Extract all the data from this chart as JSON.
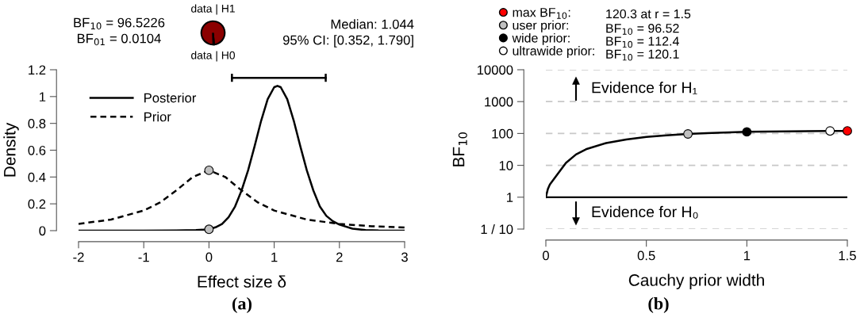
{
  "chart_data": [
    {
      "type": "line",
      "xlabel": "Effect size δ",
      "ylabel": "Density",
      "xlim": [
        -2,
        3
      ],
      "xticks": [
        -2,
        -1,
        0,
        1,
        2,
        3
      ],
      "ylim": [
        0,
        1.2
      ],
      "yticks": [
        0,
        0.2,
        0.4,
        0.6,
        0.8,
        1,
        1.2
      ],
      "grid": false,
      "legend": "top left",
      "annotations": [
        "BF$_{10}$ = 96.5226",
        "BF$_{01}$ = 0.0104",
        "Median: 1.044",
        "95% CI: [0.352, 1.790]",
        "(a)"
      ],
      "series": [
        {
          "type": "line",
          "name": "Posterior",
          "color": "#000000",
          "line_style": "solid",
          "x": [
            -2,
            -1,
            -0.5,
            -0.2,
            0,
            0.1,
            0.2,
            0.3,
            0.4,
            0.5,
            0.6,
            0.7,
            0.8,
            0.9,
            1.0,
            1.05,
            1.1,
            1.2,
            1.3,
            1.4,
            1.5,
            1.6,
            1.7,
            1.8,
            1.9,
            2.0,
            2.2,
            2.4,
            2.6,
            3
          ],
          "values": [
            0,
            0,
            0.001,
            0.004,
            0.01,
            0.025,
            0.05,
            0.1,
            0.18,
            0.3,
            0.45,
            0.63,
            0.82,
            0.98,
            1.07,
            1.08,
            1.07,
            0.98,
            0.82,
            0.63,
            0.45,
            0.3,
            0.18,
            0.11,
            0.07,
            0.045,
            0.015,
            0.004,
            0.001,
            0
          ]
        },
        {
          "type": "line",
          "name": "Prior",
          "color": "#000000",
          "line_style": "dashed",
          "x": [
            -2,
            -1.5,
            -1,
            -0.75,
            -0.5,
            -0.25,
            0,
            0.25,
            0.5,
            0.75,
            1,
            1.5,
            2,
            2.5,
            3
          ],
          "values": [
            0.05,
            0.083,
            0.15,
            0.21,
            0.3,
            0.4,
            0.45,
            0.4,
            0.3,
            0.21,
            0.15,
            0.083,
            0.05,
            0.033,
            0.024
          ]
        },
        {
          "type": "scatter",
          "color": "#c0c0c0",
          "marker": "circle",
          "x": [
            0,
            0
          ],
          "values": [
            0.45,
            0.01
          ]
        },
        {
          "type": "line",
          "color": "#000000",
          "line_style": "solid",
          "x": [
            0.352,
            1.79
          ],
          "values": [
            1.14,
            1.14
          ]
        }
      ]
    },
    {
      "type": "pie",
      "categories": [
        "data | H1",
        "data | H0"
      ],
      "values": [
        99,
        1
      ],
      "colors": [
        "#8b0000",
        "#ffffff"
      ],
      "legend": false
    },
    {
      "type": "line",
      "xlabel": "Cauchy prior width",
      "ylabel": "BF$_{10}$",
      "log": "y",
      "xlim": [
        0,
        1.5
      ],
      "xticks": [
        0,
        0.5,
        1,
        1.5
      ],
      "ylim": [
        0.1,
        10000
      ],
      "yticks": [
        {
          "value": 0.1,
          "label": "1 / 10"
        },
        1,
        10,
        100,
        1000,
        10000
      ],
      "grid": "y",
      "legend": "top left",
      "ref_lines": [
        {
          "axis": "y",
          "value": 1,
          "color": "#000000",
          "line_style": "solid"
        }
      ],
      "annotations": [
        "120.3 at r = 1.5",
        "BF$_{10}$ = 96.52",
        "BF$_{10}$ = 112.4",
        "BF$_{10}$ = 120.1",
        "Evidence for H₁",
        "Evidence for H₀",
        "(b)"
      ],
      "series": [
        {
          "type": "line",
          "color": "#000000",
          "line_style": "solid",
          "x": [
            0,
            0.01,
            0.02,
            0.05,
            0.1,
            0.15,
            0.2,
            0.3,
            0.4,
            0.5,
            0.6,
            0.707,
            0.8,
            1.0,
            1.2,
            1.414,
            1.5
          ],
          "values": [
            1,
            1.8,
            2.5,
            4.5,
            12,
            22,
            32,
            50,
            65,
            78,
            88,
            96.52,
            102,
            112.4,
            117,
            120.1,
            120.3
          ]
        },
        {
          "type": "scatter",
          "name": "max BF$_{10}$:",
          "color": "#ff0000",
          "marker": "circle",
          "x": [
            1.5
          ],
          "values": [
            120.3
          ]
        },
        {
          "type": "scatter",
          "name": "user prior:",
          "color": "#c0c0c0",
          "marker": "circle",
          "x": [
            0.707
          ],
          "values": [
            96.52
          ]
        },
        {
          "type": "scatter",
          "name": "wide prior:",
          "color": "#000000",
          "marker": "circle",
          "x": [
            1.0
          ],
          "values": [
            112.4
          ]
        },
        {
          "type": "scatter",
          "name": "ultrawide prior:",
          "color": "#ffffff",
          "marker": "circle",
          "x": [
            1.414
          ],
          "values": [
            120.1
          ]
        }
      ]
    }
  ]
}
